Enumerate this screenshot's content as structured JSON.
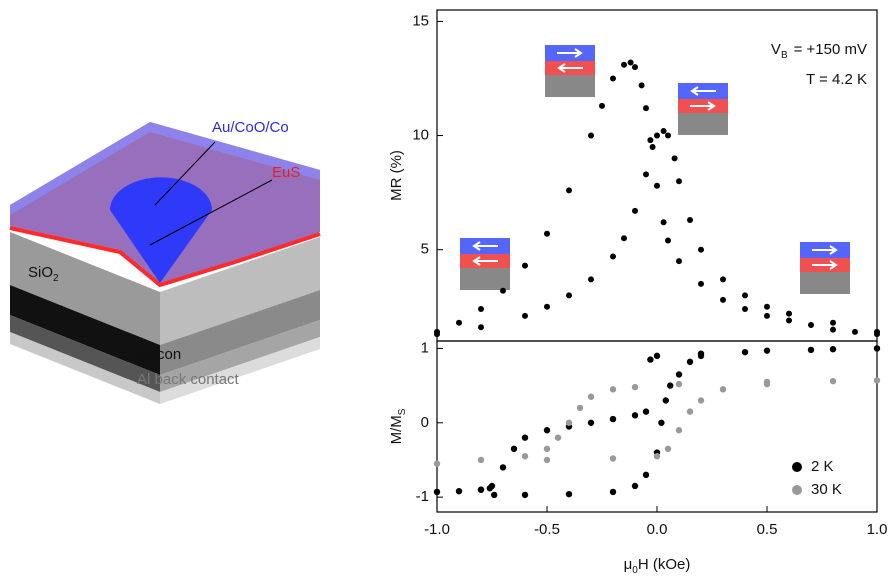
{
  "diagram": {
    "labels": {
      "top_layer": "Au/CoO/Co",
      "barrier": "EuS",
      "oxide": "SiO",
      "oxide_sub": "2",
      "substrate": "Silicon",
      "contact": "Al back contact"
    }
  },
  "chart_data": [
    {
      "type": "scatter",
      "y_label": "MR (%)",
      "xlim": [
        -1,
        1
      ],
      "ylim": [
        1,
        15.5
      ],
      "yticks": [
        5,
        10,
        15
      ],
      "annotations": [
        {
          "main": "V",
          "sub": "B",
          "rest": "= +150 mV"
        },
        {
          "main": "T = 4.2 K"
        }
      ],
      "series": [
        {
          "color": "#000000",
          "x": [
            -1.0,
            -0.9,
            -0.8,
            -0.7,
            -0.6,
            -0.5,
            -0.4,
            -0.3,
            -0.25,
            -0.2,
            -0.15,
            -0.12,
            -0.1,
            -0.07,
            -0.05,
            -0.03,
            0.0,
            0.03,
            0.05,
            0.1,
            0.2,
            0.3,
            0.4,
            0.5,
            0.6,
            0.7,
            0.8,
            0.9,
            1.0
          ],
          "values": [
            1.4,
            1.8,
            2.4,
            3.2,
            4.3,
            5.7,
            7.6,
            10.0,
            11.3,
            12.5,
            13.1,
            13.2,
            13.0,
            12.2,
            11.2,
            9.8,
            7.8,
            6.2,
            5.4,
            4.5,
            3.5,
            2.8,
            2.4,
            2.1,
            1.9,
            1.7,
            1.5,
            1.4,
            1.3
          ]
        },
        {
          "color": "#000000",
          "x": [
            -1.0,
            -0.8,
            -0.6,
            -0.5,
            -0.4,
            -0.3,
            -0.2,
            -0.15,
            -0.1,
            -0.05,
            -0.02,
            0.0,
            0.03,
            0.05,
            0.08,
            0.1,
            0.15,
            0.2,
            0.3,
            0.4,
            0.5,
            0.6,
            0.8,
            1.0
          ],
          "values": [
            1.3,
            1.6,
            2.1,
            2.5,
            3.0,
            3.7,
            4.7,
            5.5,
            6.7,
            8.3,
            9.5,
            10.0,
            10.2,
            10.0,
            9.0,
            8.0,
            6.3,
            5.0,
            3.7,
            3.0,
            2.5,
            2.2,
            1.8,
            1.4
          ]
        }
      ]
    },
    {
      "type": "scatter",
      "y_label": "M/M",
      "y_label_sub": "S",
      "x_label": "μ",
      "x_label_sub": "0",
      "x_label_rest": "H (kOe)",
      "xlim": [
        -1,
        1
      ],
      "ylim": [
        -1.2,
        1.1
      ],
      "yticks": [
        -1,
        0,
        1
      ],
      "xticks": [
        {
          "value": -1,
          "label": "-1.0"
        },
        -0.5,
        {
          "value": 0,
          "label": "0.0"
        },
        0.5,
        {
          "value": 1,
          "label": "1.0"
        }
      ],
      "legend": "lower right",
      "series": [
        {
          "name": "2 K",
          "color": "#000000",
          "x": [
            -1.0,
            -0.9,
            -0.8,
            -0.76,
            -0.74,
            -0.6,
            -0.4,
            -0.2,
            -0.1,
            -0.05,
            0.0,
            0.02,
            0.04,
            0.06,
            0.1,
            0.15,
            0.2,
            0.4,
            0.7,
            1.0,
            0.8,
            0.5,
            0.2,
            0.0,
            -0.03,
            -0.05,
            -0.1,
            -0.2,
            -0.3,
            -0.4,
            -0.5,
            -0.6,
            -0.65,
            -0.7,
            -0.75,
            -0.8
          ],
          "values": [
            -0.93,
            -0.92,
            -0.9,
            -0.88,
            -0.97,
            -0.97,
            -0.96,
            -0.93,
            -0.85,
            -0.7,
            -0.4,
            0.0,
            0.3,
            0.5,
            0.65,
            0.82,
            0.9,
            0.95,
            0.98,
            1.0,
            0.99,
            0.97,
            0.93,
            0.9,
            0.85,
            0.15,
            0.1,
            0.05,
            0.0,
            -0.05,
            -0.1,
            -0.2,
            -0.35,
            -0.6,
            -0.85,
            -0.9
          ]
        },
        {
          "name": "30 K",
          "color": "#999999",
          "x": [
            1.0,
            0.5,
            0.1,
            -0.1,
            -0.2,
            -0.3,
            -0.35,
            -0.4,
            -0.45,
            -0.5,
            -0.6,
            -0.8,
            -1.0,
            -0.5,
            -0.2,
            0.0,
            0.05,
            0.1,
            0.15,
            0.2,
            0.3,
            0.5,
            0.8
          ],
          "values": [
            0.57,
            0.55,
            0.52,
            0.48,
            0.45,
            0.35,
            0.2,
            0.0,
            -0.2,
            -0.35,
            -0.45,
            -0.5,
            -0.55,
            -0.5,
            -0.48,
            -0.45,
            -0.35,
            -0.1,
            0.15,
            0.3,
            0.45,
            0.52,
            0.56
          ]
        }
      ]
    }
  ]
}
